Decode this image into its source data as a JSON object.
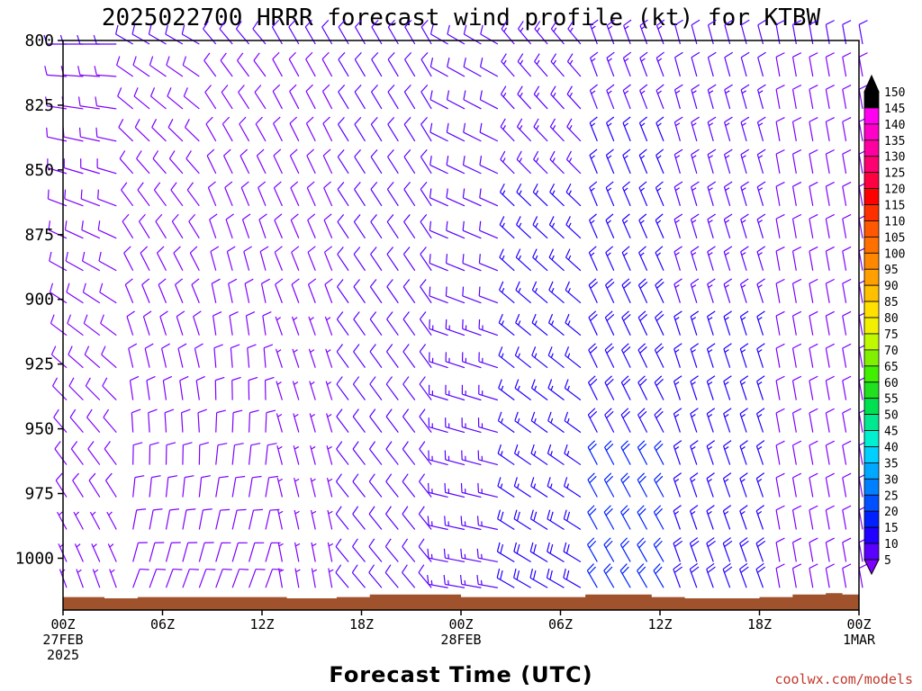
{
  "chart_data": {
    "type": "wind-barb-profile",
    "title": "2025022700 HRRR forecast wind profile (kt) for KTBW",
    "xlabel": "Forecast Time (UTC)",
    "credit": "coolwx.com/models",
    "y_axis": {
      "quantity": "pressure (hPa)",
      "range": [
        800,
        1020
      ],
      "inverted": true,
      "ticks": [
        "800",
        "825",
        "850",
        "875",
        "900",
        "925",
        "950",
        "975",
        "1000"
      ]
    },
    "x_axis": {
      "range_hours": [
        0,
        48
      ],
      "ticks": [
        {
          "hour": 0,
          "label": [
            "00Z",
            "27FEB",
            "2025"
          ]
        },
        {
          "hour": 6,
          "label": [
            "06Z"
          ]
        },
        {
          "hour": 12,
          "label": [
            "12Z"
          ]
        },
        {
          "hour": 18,
          "label": [
            "18Z"
          ]
        },
        {
          "hour": 24,
          "label": [
            "00Z",
            "28FEB"
          ]
        },
        {
          "hour": 30,
          "label": [
            "06Z"
          ]
        },
        {
          "hour": 36,
          "label": [
            "12Z"
          ]
        },
        {
          "hour": 42,
          "label": [
            "18Z"
          ]
        },
        {
          "hour": 48,
          "label": [
            "00Z",
            "1MAR"
          ]
        }
      ]
    },
    "colorbar": {
      "units": "kt",
      "levels": [
        "5",
        "10",
        "15",
        "20",
        "25",
        "30",
        "35",
        "40",
        "45",
        "50",
        "55",
        "60",
        "65",
        "70",
        "75",
        "80",
        "85",
        "90",
        "95",
        "100",
        "105",
        "110",
        "115",
        "120",
        "125",
        "130",
        "135",
        "140",
        "145",
        "150"
      ],
      "colors": [
        "#7f00ff",
        "#5a00ff",
        "#2000ff",
        "#0020ff",
        "#0050ff",
        "#0080ff",
        "#00a8ff",
        "#00d0ff",
        "#00f0d0",
        "#00e890",
        "#00e050",
        "#20e020",
        "#40f000",
        "#80f000",
        "#c0f800",
        "#f0f000",
        "#ffe000",
        "#ffc000",
        "#ffa000",
        "#ff8800",
        "#ff7000",
        "#ff5800",
        "#ff3000",
        "#ff0000",
        "#ff0040",
        "#ff0070",
        "#ff00a0",
        "#ff00c8",
        "#ff00f0",
        "#000000"
      ],
      "extend": "both"
    },
    "ground": {
      "color": "#a0522d",
      "surface_pressure": [
        {
          "hour": 0,
          "p": 1015.0
        },
        {
          "hour": 2.5,
          "p": 1015.5
        },
        {
          "hour": 4.5,
          "p": 1015.0
        },
        {
          "hour": 13.5,
          "p": 1015.5
        },
        {
          "hour": 16.5,
          "p": 1015.0
        },
        {
          "hour": 18.5,
          "p": 1014.0
        },
        {
          "hour": 24,
          "p": 1015.0
        },
        {
          "hour": 31.5,
          "p": 1014.0
        },
        {
          "hour": 35.5,
          "p": 1015.0
        },
        {
          "hour": 37.5,
          "p": 1015.5
        },
        {
          "hour": 42,
          "p": 1015.0
        },
        {
          "hour": 44,
          "p": 1014.0
        },
        {
          "hour": 46,
          "p": 1013.5
        },
        {
          "hour": 47,
          "p": 1014.0
        },
        {
          "hour": 48,
          "p": 1014.0
        }
      ]
    },
    "barbs": {
      "hour_step": 1,
      "levels_hPa": [
        800,
        812.5,
        825,
        837.5,
        850,
        862.5,
        875,
        887.5,
        900,
        912.5,
        925,
        937.5,
        950,
        962.5,
        975,
        987.5,
        1000,
        1010
      ],
      "time_segments": [
        {
          "hours": [
            0,
            3
          ],
          "upper_dir": 270,
          "upper_spd": 10,
          "low_dir": 340,
          "low_spd": 7
        },
        {
          "hours": [
            4,
            8
          ],
          "upper_dir": 300,
          "upper_spd": 10,
          "low_dir": 20,
          "low_spd": 9
        },
        {
          "hours": [
            9,
            12
          ],
          "upper_dir": 320,
          "upper_spd": 10,
          "low_dir": 20,
          "low_spd": 8
        },
        {
          "hours": [
            13,
            16
          ],
          "upper_dir": 330,
          "upper_spd": 10,
          "low_dir": 350,
          "low_spd": 5
        },
        {
          "hours": [
            17,
            22
          ],
          "upper_dir": 330,
          "upper_spd": 10,
          "low_dir": 320,
          "low_spd": 10
        },
        {
          "hours": [
            23,
            26
          ],
          "upper_dir": 300,
          "upper_spd": 11,
          "low_dir": 280,
          "low_spd": 14
        },
        {
          "hours": [
            27,
            31
          ],
          "upper_dir": 320,
          "upper_spd": 14,
          "low_dir": 300,
          "low_spd": 18
        },
        {
          "hours": [
            32,
            36
          ],
          "upper_dir": 340,
          "upper_spd": 14,
          "low_dir": 330,
          "low_spd": 22
        },
        {
          "hours": [
            37,
            42
          ],
          "upper_dir": 345,
          "upper_spd": 12,
          "low_dir": 340,
          "low_spd": 18
        },
        {
          "hours": [
            43,
            48
          ],
          "upper_dir": 350,
          "upper_spd": 10,
          "low_dir": 350,
          "low_spd": 9
        }
      ]
    }
  }
}
